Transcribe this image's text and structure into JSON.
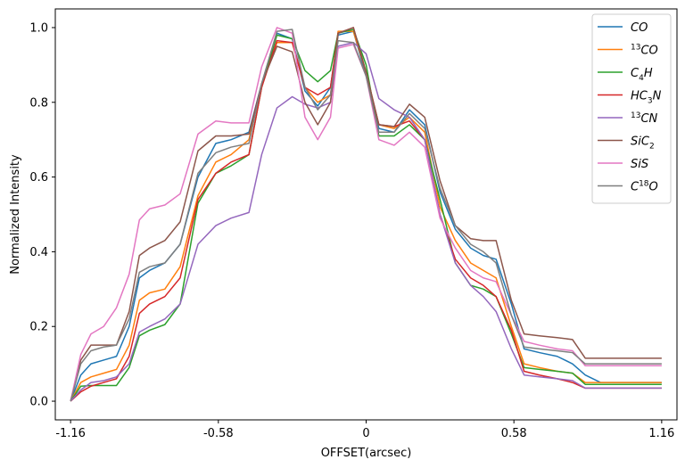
{
  "chart_data": {
    "type": "line",
    "title": "",
    "xlabel": "OFFSET(arcsec)",
    "ylabel": "Normalized Intensity",
    "xlim": [
      -1.22,
      1.22
    ],
    "ylim": [
      -0.05,
      1.05
    ],
    "xticks": [
      -1.16,
      -0.58,
      0,
      0.58,
      1.16
    ],
    "xtick_labels": [
      "-1.16",
      "-0.58",
      "0",
      "0.58",
      "1.16"
    ],
    "yticks": [
      0.0,
      0.2,
      0.4,
      0.6,
      0.8,
      1.0
    ],
    "ytick_labels": [
      "0.0",
      "0.2",
      "0.4",
      "0.6",
      "0.8",
      "1.0"
    ],
    "legend_position": "top-right",
    "x": [
      -1.16,
      -1.12,
      -1.08,
      -1.03,
      -0.98,
      -0.93,
      -0.89,
      -0.85,
      -0.79,
      -0.73,
      -0.66,
      -0.59,
      -0.53,
      -0.46,
      -0.41,
      -0.35,
      -0.29,
      -0.24,
      -0.19,
      -0.14,
      -0.11,
      -0.05,
      0.0,
      0.05,
      0.11,
      0.17,
      0.23,
      0.29,
      0.35,
      0.41,
      0.46,
      0.51,
      0.57,
      0.62,
      0.68,
      0.75,
      0.81,
      0.86,
      0.92,
      0.98,
      1.04,
      1.1,
      1.16
    ],
    "series": [
      {
        "name": "CO",
        "sup": "",
        "sub": "",
        "color": "#1f77b4",
        "values": [
          0.0,
          0.07,
          0.1,
          0.11,
          0.12,
          0.2,
          0.33,
          0.35,
          0.37,
          0.42,
          0.6,
          0.69,
          0.7,
          0.72,
          0.85,
          0.985,
          0.97,
          0.83,
          0.79,
          0.84,
          0.98,
          0.99,
          0.87,
          0.73,
          0.72,
          0.78,
          0.74,
          0.56,
          0.46,
          0.41,
          0.39,
          0.38,
          0.26,
          0.14,
          0.13,
          0.12,
          0.1,
          0.07,
          0.05,
          0.05,
          0.05,
          0.05,
          0.05
        ]
      },
      {
        "name": "CO",
        "sup": "13",
        "sub": "",
        "color": "#ff7f0e",
        "values": [
          0.0,
          0.05,
          0.065,
          0.075,
          0.085,
          0.15,
          0.27,
          0.29,
          0.3,
          0.36,
          0.55,
          0.64,
          0.66,
          0.7,
          0.85,
          0.96,
          0.96,
          0.84,
          0.8,
          0.82,
          0.99,
          0.99,
          0.88,
          0.74,
          0.73,
          0.76,
          0.72,
          0.52,
          0.43,
          0.37,
          0.35,
          0.33,
          0.2,
          0.1,
          0.09,
          0.08,
          0.075,
          0.05,
          0.05,
          0.05,
          0.05,
          0.05,
          0.05
        ]
      },
      {
        "name": "C",
        "sup": "",
        "sub": "4",
        "tail": "H",
        "color": "#2ca02c",
        "values": [
          0.0,
          0.04,
          0.042,
          0.042,
          0.042,
          0.09,
          0.175,
          0.19,
          0.205,
          0.26,
          0.53,
          0.61,
          0.63,
          0.66,
          0.84,
          0.98,
          0.97,
          0.885,
          0.855,
          0.885,
          0.985,
          0.995,
          0.9,
          0.71,
          0.71,
          0.74,
          0.7,
          0.54,
          0.37,
          0.31,
          0.3,
          0.28,
          0.18,
          0.09,
          0.085,
          0.08,
          0.075,
          0.045,
          0.045,
          0.045,
          0.045,
          0.045,
          0.045
        ]
      },
      {
        "name": "HC",
        "sup": "",
        "sub": "3",
        "tail": "N",
        "color": "#d62728",
        "values": [
          0.0,
          0.025,
          0.04,
          0.05,
          0.06,
          0.12,
          0.235,
          0.26,
          0.28,
          0.33,
          0.54,
          0.61,
          0.64,
          0.66,
          0.84,
          0.965,
          0.96,
          0.84,
          0.82,
          0.84,
          0.985,
          1.0,
          0.88,
          0.74,
          0.735,
          0.75,
          0.7,
          0.5,
          0.38,
          0.33,
          0.31,
          0.28,
          0.19,
          0.08,
          0.07,
          0.06,
          0.05,
          0.035,
          0.035,
          0.035,
          0.035,
          0.035,
          0.035
        ]
      },
      {
        "name": "CN",
        "sup": "13",
        "sub": "",
        "color": "#9467bd",
        "values": [
          0.0,
          0.03,
          0.05,
          0.055,
          0.065,
          0.1,
          0.185,
          0.2,
          0.22,
          0.26,
          0.42,
          0.47,
          0.49,
          0.505,
          0.66,
          0.785,
          0.815,
          0.795,
          0.785,
          0.8,
          0.95,
          0.96,
          0.93,
          0.81,
          0.78,
          0.76,
          0.7,
          0.5,
          0.37,
          0.31,
          0.28,
          0.24,
          0.14,
          0.07,
          0.065,
          0.06,
          0.055,
          0.035,
          0.035,
          0.035,
          0.035,
          0.035,
          0.035
        ]
      },
      {
        "name": "SiC",
        "sup": "",
        "sub": "2",
        "color": "#8c564b",
        "values": [
          0.0,
          0.11,
          0.15,
          0.15,
          0.15,
          0.24,
          0.39,
          0.41,
          0.43,
          0.48,
          0.67,
          0.71,
          0.71,
          0.715,
          0.85,
          0.95,
          0.935,
          0.8,
          0.74,
          0.8,
          0.985,
          1.0,
          0.88,
          0.74,
          0.735,
          0.795,
          0.76,
          0.59,
          0.47,
          0.435,
          0.43,
          0.43,
          0.27,
          0.18,
          0.175,
          0.17,
          0.165,
          0.115,
          0.115,
          0.115,
          0.115,
          0.115,
          0.115
        ]
      },
      {
        "name": "SiS",
        "sup": "",
        "sub": "",
        "color": "#e377c2",
        "values": [
          0.0,
          0.125,
          0.18,
          0.2,
          0.25,
          0.34,
          0.485,
          0.515,
          0.525,
          0.555,
          0.715,
          0.75,
          0.745,
          0.745,
          0.895,
          1.0,
          0.985,
          0.76,
          0.7,
          0.76,
          0.945,
          0.955,
          0.87,
          0.7,
          0.685,
          0.72,
          0.68,
          0.49,
          0.41,
          0.35,
          0.33,
          0.32,
          0.23,
          0.16,
          0.15,
          0.14,
          0.135,
          0.095,
          0.095,
          0.095,
          0.095,
          0.095,
          0.095
        ]
      },
      {
        "name": "C",
        "sup": "",
        "sub": "",
        "sup2": "18",
        "tail": "O",
        "color": "#7f7f7f",
        "values": [
          0.0,
          0.1,
          0.135,
          0.145,
          0.15,
          0.22,
          0.345,
          0.36,
          0.37,
          0.42,
          0.61,
          0.665,
          0.68,
          0.69,
          0.85,
          0.99,
          0.995,
          0.84,
          0.78,
          0.82,
          0.965,
          0.96,
          0.87,
          0.72,
          0.72,
          0.77,
          0.73,
          0.57,
          0.47,
          0.42,
          0.4,
          0.37,
          0.23,
          0.145,
          0.14,
          0.135,
          0.13,
          0.1,
          0.1,
          0.1,
          0.1,
          0.1,
          0.1
        ]
      }
    ]
  }
}
